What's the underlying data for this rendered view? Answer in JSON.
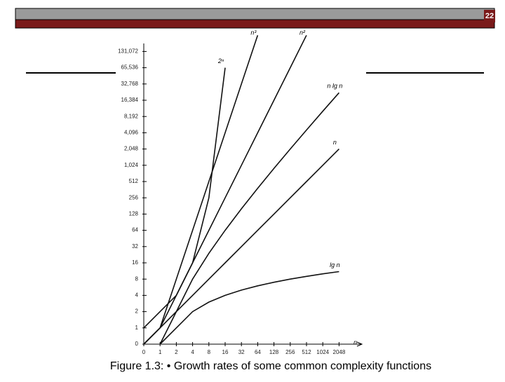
{
  "slide": {
    "number": "22",
    "caption": "Figure 1.3: • Growth rates of some common complexity functions"
  },
  "chart_data": {
    "type": "line",
    "log_scale": true,
    "log_base": 2,
    "grid": false,
    "xlabel": "n",
    "x": [
      0,
      1,
      2,
      4,
      8,
      16,
      32,
      64,
      128,
      256,
      512,
      1024,
      2048
    ],
    "series": [
      {
        "name": "2ⁿ",
        "color": "#111111",
        "values": [
          1,
          2,
          4,
          16,
          256,
          65536,
          null,
          null,
          null,
          null,
          null,
          null,
          null
        ]
      },
      {
        "name": "n³",
        "color": "#111111",
        "values": [
          0,
          1,
          8,
          64,
          512,
          4096,
          32768,
          262144,
          null,
          null,
          null,
          null,
          null
        ]
      },
      {
        "name": "n²",
        "color": "#111111",
        "values": [
          0,
          1,
          4,
          16,
          64,
          256,
          1024,
          4096,
          16384,
          65536,
          262144,
          null,
          null
        ]
      },
      {
        "name": "n lg n",
        "color": "#111111",
        "values": [
          null,
          0,
          2,
          8,
          24,
          64,
          160,
          384,
          896,
          2048,
          4608,
          10240,
          22528
        ]
      },
      {
        "name": "n",
        "color": "#111111",
        "values": [
          0,
          1,
          2,
          4,
          8,
          16,
          32,
          64,
          128,
          256,
          512,
          1024,
          2048
        ]
      },
      {
        "name": "lg n",
        "color": "#111111",
        "values": [
          null,
          0,
          1,
          2,
          3,
          4,
          5,
          6,
          7,
          8,
          9,
          10,
          11
        ]
      }
    ],
    "xlim": [
      0,
      2048
    ],
    "xticks": [
      0,
      1,
      2,
      4,
      8,
      16,
      32,
      64,
      128,
      256,
      512,
      1024,
      2048
    ],
    "ylim": [
      0,
      262144
    ],
    "yticks": [
      0,
      1,
      2,
      4,
      8,
      16,
      32,
      64,
      128,
      256,
      512,
      {
        "value": 1024,
        "label": "1,024"
      },
      {
        "value": 2048,
        "label": "2,048"
      },
      {
        "value": 4096,
        "label": "4,096"
      },
      {
        "value": 8192,
        "label": "8,192"
      },
      {
        "value": 16384,
        "label": "16,384"
      },
      {
        "value": 32768,
        "label": "32,768"
      },
      {
        "value": 65536,
        "label": "65,536"
      },
      {
        "value": 131072,
        "label": "131,072"
      }
    ]
  }
}
